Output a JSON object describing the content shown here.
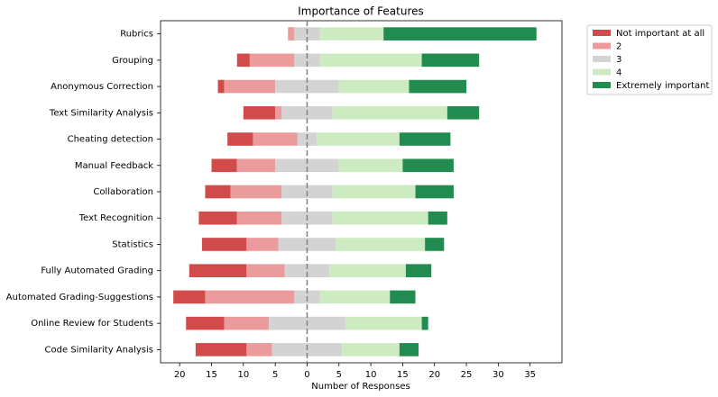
{
  "chart_data": {
    "type": "diverging-bar",
    "title": "Importance of Features",
    "xlabel": "Number of Responses",
    "categories": [
      "Rubrics",
      "Grouping",
      "Anonymous Correction",
      "Text Similarity Analysis",
      "Cheating detection",
      "Manual Feedback",
      "Collaboration",
      "Text Recognition",
      "Statistics",
      "Fully Automated Grading",
      "Automated Grading-Suggestions",
      "Online Review for Students",
      "Code Similarity Analysis"
    ],
    "series": [
      {
        "name": "Not important at all",
        "color": "#d14b4b",
        "values": [
          0,
          2,
          1,
          5,
          4,
          4,
          4,
          6,
          7,
          9,
          5,
          6,
          8
        ]
      },
      {
        "name": "2",
        "color": "#eb9b9b",
        "values": [
          1,
          7,
          8,
          1,
          7,
          6,
          8,
          7,
          5,
          6,
          14,
          7,
          4
        ]
      },
      {
        "name": "3",
        "color": "#d3d3d3",
        "values": [
          4,
          4,
          10,
          8,
          3,
          10,
          8,
          8,
          9,
          7,
          4,
          12,
          11
        ]
      },
      {
        "name": "4",
        "color": "#cdebc0",
        "values": [
          10,
          16,
          11,
          18,
          13,
          10,
          13,
          15,
          14,
          12,
          11,
          12,
          9
        ]
      },
      {
        "name": "Extremely important",
        "color": "#228b4f",
        "values": [
          24,
          9,
          9,
          5,
          8,
          8,
          6,
          3,
          3,
          4,
          4,
          1,
          3
        ]
      }
    ],
    "xlim": [
      -23,
      40
    ],
    "xticks": [
      {
        "value": -20,
        "label": "20"
      },
      {
        "value": -15,
        "label": "15"
      },
      {
        "value": -10,
        "label": "10"
      },
      {
        "value": -5,
        "label": "5"
      },
      0,
      5,
      10,
      15,
      20,
      25,
      30,
      35
    ],
    "legend": "outside-upper-right"
  }
}
